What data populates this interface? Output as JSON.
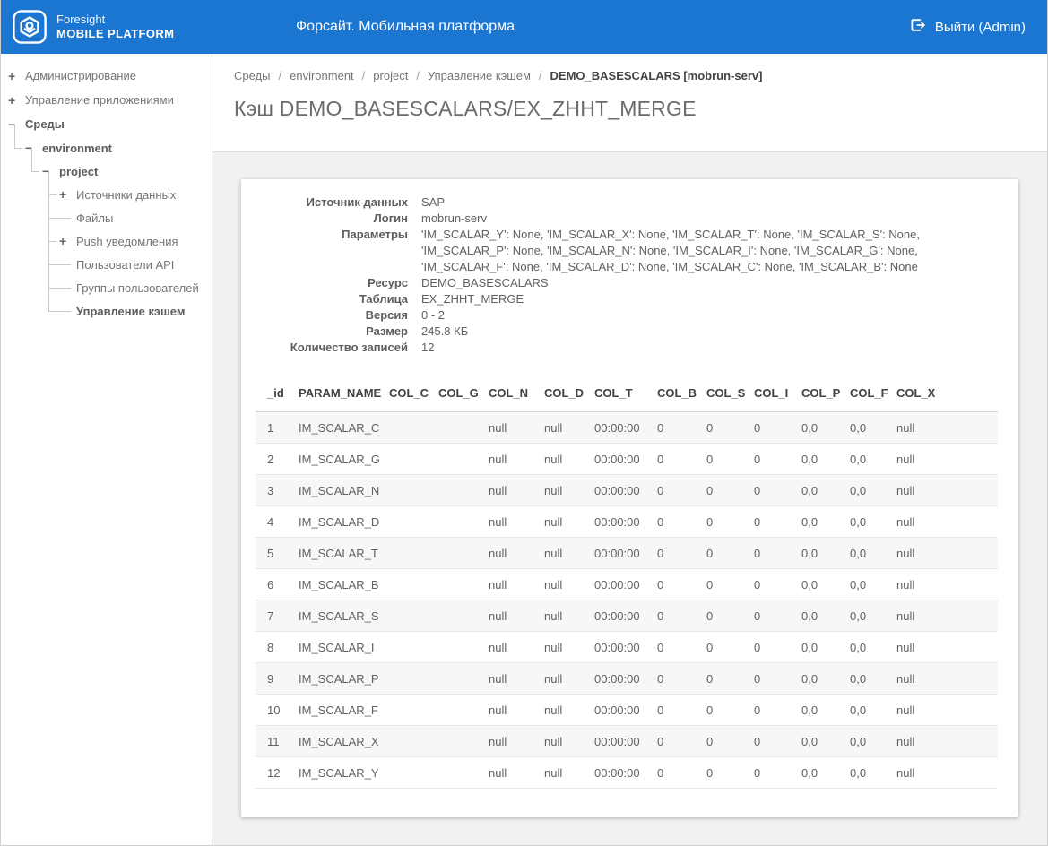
{
  "header": {
    "brand": {
      "line1": "Foresight",
      "line2": "MOBILE PLATFORM"
    },
    "title": "Форсайт. Мобильная платформа",
    "logout_label": "Выйти (Admin)",
    "accent_color": "#1b76d2"
  },
  "sidebar": {
    "items": [
      {
        "label": "Администрирование",
        "expander": "+"
      },
      {
        "label": "Управление приложениями",
        "expander": "+"
      },
      {
        "label": "Среды",
        "expander": "−"
      },
      {
        "label": "environment",
        "expander": "−"
      },
      {
        "label": "project",
        "expander": "−"
      },
      {
        "label": "Источники данных",
        "expander": "+"
      },
      {
        "label": "Файлы",
        "expander": ""
      },
      {
        "label": "Push уведомления",
        "expander": "+"
      },
      {
        "label": "Пользователи API",
        "expander": ""
      },
      {
        "label": "Группы пользователей",
        "expander": ""
      },
      {
        "label": "Управление кэшем",
        "expander": ""
      }
    ]
  },
  "breadcrumb": {
    "separator": "/",
    "items": [
      "Среды",
      "environment",
      "project",
      "Управление кэшем",
      "DEMO_BASESCALARS [mobrun-serv]"
    ]
  },
  "page": {
    "title": "Кэш DEMO_BASESCALARS/EX_ZHHT_MERGE"
  },
  "details": {
    "rows": [
      {
        "label": "Источник данных",
        "value": "SAP"
      },
      {
        "label": "Логин",
        "value": "mobrun-serv"
      },
      {
        "label": "Параметры",
        "value": "'IM_SCALAR_Y': None, 'IM_SCALAR_X': None, 'IM_SCALAR_T': None, 'IM_SCALAR_S': None, 'IM_SCALAR_P': None, 'IM_SCALAR_N': None, 'IM_SCALAR_I': None, 'IM_SCALAR_G': None, 'IM_SCALAR_F': None, 'IM_SCALAR_D': None, 'IM_SCALAR_C': None, 'IM_SCALAR_B': None"
      },
      {
        "label": "Ресурс",
        "value": "DEMO_BASESCALARS"
      },
      {
        "label": "Таблица",
        "value": "EX_ZHHT_MERGE"
      },
      {
        "label": "Версия",
        "value": "0 - 2"
      },
      {
        "label": "Размер",
        "value": "245.8 КБ"
      },
      {
        "label": "Количество записей",
        "value": "12"
      }
    ]
  },
  "table": {
    "columns": [
      "_id",
      "PARAM_NAME",
      "COL_C",
      "COL_G",
      "COL_N",
      "COL_D",
      "COL_T",
      "COL_B",
      "COL_S",
      "COL_I",
      "COL_P",
      "COL_F",
      "COL_X"
    ],
    "rows": [
      [
        "1",
        "IM_SCALAR_C",
        "",
        "",
        "null",
        "null",
        "00:00:00",
        "0",
        "0",
        "0",
        "0,0",
        "0,0",
        "null"
      ],
      [
        "2",
        "IM_SCALAR_G",
        "",
        "",
        "null",
        "null",
        "00:00:00",
        "0",
        "0",
        "0",
        "0,0",
        "0,0",
        "null"
      ],
      [
        "3",
        "IM_SCALAR_N",
        "",
        "",
        "null",
        "null",
        "00:00:00",
        "0",
        "0",
        "0",
        "0,0",
        "0,0",
        "null"
      ],
      [
        "4",
        "IM_SCALAR_D",
        "",
        "",
        "null",
        "null",
        "00:00:00",
        "0",
        "0",
        "0",
        "0,0",
        "0,0",
        "null"
      ],
      [
        "5",
        "IM_SCALAR_T",
        "",
        "",
        "null",
        "null",
        "00:00:00",
        "0",
        "0",
        "0",
        "0,0",
        "0,0",
        "null"
      ],
      [
        "6",
        "IM_SCALAR_B",
        "",
        "",
        "null",
        "null",
        "00:00:00",
        "0",
        "0",
        "0",
        "0,0",
        "0,0",
        "null"
      ],
      [
        "7",
        "IM_SCALAR_S",
        "",
        "",
        "null",
        "null",
        "00:00:00",
        "0",
        "0",
        "0",
        "0,0",
        "0,0",
        "null"
      ],
      [
        "8",
        "IM_SCALAR_I",
        "",
        "",
        "null",
        "null",
        "00:00:00",
        "0",
        "0",
        "0",
        "0,0",
        "0,0",
        "null"
      ],
      [
        "9",
        "IM_SCALAR_P",
        "",
        "",
        "null",
        "null",
        "00:00:00",
        "0",
        "0",
        "0",
        "0,0",
        "0,0",
        "null"
      ],
      [
        "10",
        "IM_SCALAR_F",
        "",
        "",
        "null",
        "null",
        "00:00:00",
        "0",
        "0",
        "0",
        "0,0",
        "0,0",
        "null"
      ],
      [
        "11",
        "IM_SCALAR_X",
        "",
        "",
        "null",
        "null",
        "00:00:00",
        "0",
        "0",
        "0",
        "0,0",
        "0,0",
        "null"
      ],
      [
        "12",
        "IM_SCALAR_Y",
        "",
        "",
        "null",
        "null",
        "00:00:00",
        "0",
        "0",
        "0",
        "0,0",
        "0,0",
        "null"
      ]
    ]
  }
}
